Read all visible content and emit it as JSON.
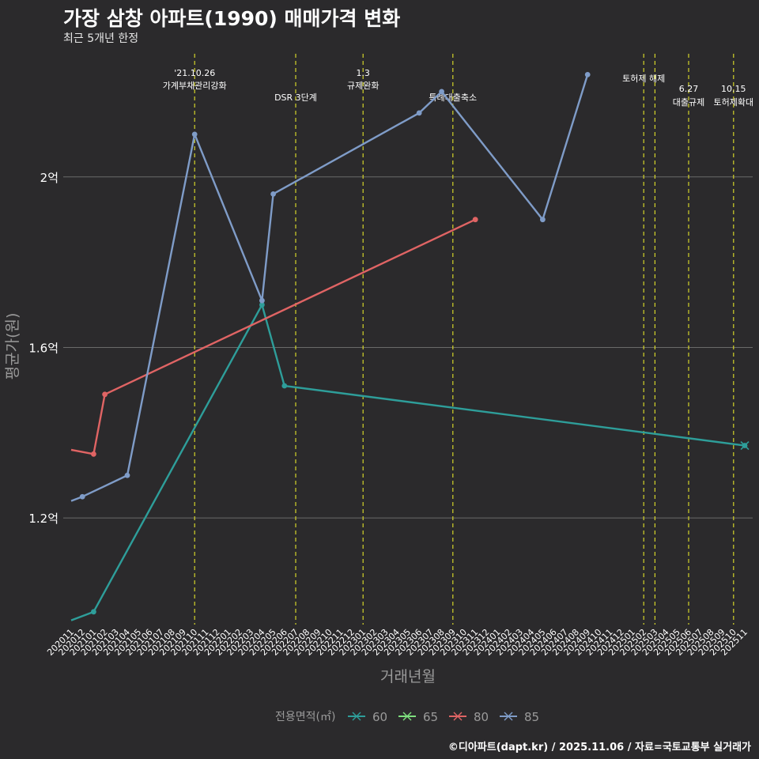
{
  "chart_data": {
    "type": "line",
    "title": "가장 삼창 아파트(1990) 매매가격 변화",
    "subtitle": "최근 5개년 한정",
    "xlabel": "거래년월",
    "ylabel": "평균가(원)",
    "ylim": [
      0.95,
      2.3
    ],
    "y_ticks": [
      {
        "value": 1.2,
        "label": "1.2억"
      },
      {
        "value": 1.6,
        "label": "1.6억"
      },
      {
        "value": 2.0,
        "label": "2억"
      }
    ],
    "categories": [
      "202011",
      "202012",
      "202101",
      "202102",
      "202103",
      "202104",
      "202105",
      "202106",
      "202107",
      "202108",
      "202109",
      "202110",
      "202111",
      "202112",
      "202201",
      "202202",
      "202203",
      "202204",
      "202205",
      "202206",
      "202207",
      "202208",
      "202209",
      "202210",
      "202211",
      "202212",
      "202301",
      "202302",
      "202303",
      "202304",
      "202305",
      "202306",
      "202307",
      "202308",
      "202309",
      "202310",
      "202311",
      "202312",
      "202401",
      "202402",
      "202403",
      "202404",
      "202405",
      "202406",
      "202407",
      "202408",
      "202409",
      "202410",
      "202411",
      "202412",
      "202501",
      "202502",
      "202503",
      "202504",
      "202505",
      "202506",
      "202507",
      "202508",
      "202509",
      "202510",
      "202511"
    ],
    "legend_title": "전용면적(㎡)",
    "legend_position": "bottom",
    "series": [
      {
        "name": "60",
        "color": "#2e9e9a",
        "points": [
          [
            "202011",
            0.96
          ],
          [
            "202101",
            0.98
          ],
          [
            "202204",
            1.7
          ],
          [
            "202206",
            1.51
          ],
          [
            "202511",
            1.37
          ]
        ]
      },
      {
        "name": "65",
        "color": "#7ee07e",
        "points": []
      },
      {
        "name": "80",
        "color": "#e06464",
        "points": [
          [
            "202011",
            1.36
          ],
          [
            "202101",
            1.35
          ],
          [
            "202102",
            1.49
          ],
          [
            "202311",
            1.9
          ]
        ]
      },
      {
        "name": "85",
        "color": "#7f9cc8",
        "points": [
          [
            "202011",
            1.24
          ],
          [
            "202012",
            1.25
          ],
          [
            "202104",
            1.3
          ],
          [
            "202110",
            2.1
          ],
          [
            "202204",
            1.71
          ],
          [
            "202205",
            1.96
          ],
          [
            "202306",
            2.15
          ],
          [
            "202308",
            2.2
          ],
          [
            "202405",
            1.9
          ],
          [
            "202409",
            2.24
          ]
        ]
      }
    ],
    "end_markers": [
      {
        "series": "60",
        "x": "202511",
        "value": 1.37
      }
    ],
    "events": [
      {
        "x": "202110",
        "line1": "'21.10.26",
        "line2": "가계부채관리강화",
        "row": "high"
      },
      {
        "x": "202207",
        "line1": "",
        "line2": "DSR 3단계",
        "row": "low"
      },
      {
        "x": "202301",
        "line1": "1.3",
        "line2": "규제완화",
        "row": "high"
      },
      {
        "x": "202309",
        "line1": "",
        "line2": "특례대출축소",
        "row": "low"
      },
      {
        "x": "202502",
        "line1": "",
        "line2": "토허제 해제",
        "row": "mid"
      },
      {
        "x": "202503",
        "line1": "",
        "line2": "",
        "row": "none"
      },
      {
        "x": "202506",
        "line1": "6.27",
        "line2": "대출규제",
        "row": "low2"
      },
      {
        "x": "202510",
        "line1": "10.15",
        "line2": "토허제확대",
        "row": "low2"
      }
    ],
    "colors": {
      "background": "#2b2a2c",
      "grid": "#6a6a6a",
      "event_line": "#d4d42a",
      "axis_text": "#ffffff",
      "muted_text": "#9a9a9a"
    }
  },
  "caption": "©디아파트(dapt.kr) / 2025.11.06 / 자료=국토교통부 실거래가"
}
